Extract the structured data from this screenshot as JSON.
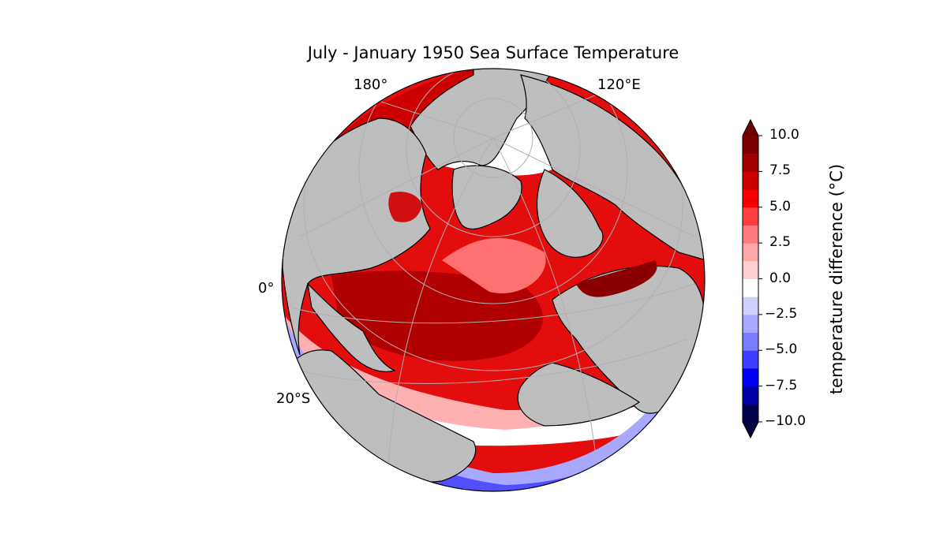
{
  "title": "July - January 1950 Sea Surface Temperature",
  "graticule_labels": {
    "lon_180": "180°",
    "lon_120e": "120°E",
    "lat_0": "0°",
    "lat_20s": "20°S"
  },
  "colorbar": {
    "label": "temperature difference (°C)",
    "ticks": [
      "10.0",
      "7.5",
      "5.0",
      "2.5",
      "0.0",
      "−2.5",
      "−5.0",
      "−7.5",
      "−10.0"
    ],
    "min": -10,
    "max": 10,
    "extend": "both",
    "colors": [
      "#00004c",
      "#0000a8",
      "#0000f5",
      "#3f3fff",
      "#7a7aff",
      "#a8a8ff",
      "#d0d0ff",
      "#ffffff",
      "#ffd0d0",
      "#ffa8a8",
      "#ff7a7a",
      "#ff3f3f",
      "#f50000",
      "#cc0000",
      "#a00000",
      "#7d0000"
    ],
    "over_color": "#6e0000",
    "under_color": "#00003c"
  },
  "map": {
    "projection": "orthographic",
    "land_color": "#bebebe",
    "coastline_color": "#000000"
  }
}
